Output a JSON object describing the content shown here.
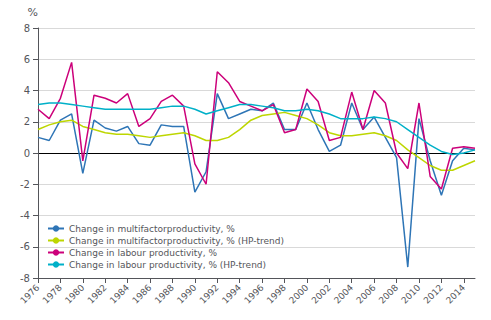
{
  "chart_data": {
    "type": "line",
    "ylabel": "%",
    "x": [
      1976,
      1977,
      1978,
      1979,
      1980,
      1981,
      1982,
      1983,
      1984,
      1985,
      1986,
      1987,
      1988,
      1989,
      1990,
      1991,
      1992,
      1993,
      1994,
      1995,
      1996,
      1997,
      1998,
      1999,
      2000,
      2001,
      2002,
      2003,
      2004,
      2005,
      2006,
      2007,
      2008,
      2009,
      2010,
      2011,
      2012,
      2013,
      2014,
      2015
    ],
    "series": [
      {
        "name": "Change in multifactorproductivity, %",
        "color": "#2e75b6",
        "values": [
          1.0,
          0.8,
          2.1,
          2.5,
          -1.3,
          2.1,
          1.6,
          1.4,
          1.7,
          0.6,
          0.5,
          1.8,
          1.7,
          1.7,
          -2.5,
          -1.2,
          3.8,
          2.2,
          2.5,
          2.8,
          2.7,
          3.2,
          1.5,
          1.5,
          3.2,
          1.5,
          0.1,
          0.5,
          3.2,
          1.5,
          2.3,
          1.0,
          -0.3,
          -7.3,
          2.2,
          -0.5,
          -2.7,
          -0.5,
          0.3,
          0.2
        ]
      },
      {
        "name": "Change in multifactorproductivity, % (HP-trend)",
        "color": "#bdd600",
        "values": [
          1.5,
          1.8,
          2.0,
          2.1,
          1.7,
          1.5,
          1.3,
          1.2,
          1.2,
          1.1,
          1.0,
          1.1,
          1.2,
          1.3,
          1.1,
          0.8,
          0.8,
          1.0,
          1.5,
          2.1,
          2.4,
          2.5,
          2.6,
          2.4,
          2.2,
          1.8,
          1.3,
          1.1,
          1.1,
          1.2,
          1.3,
          1.1,
          0.8,
          0.2,
          -0.3,
          -0.8,
          -1.1,
          -1.1,
          -0.8,
          -0.5
        ]
      },
      {
        "name": "Change in labour productivity, %",
        "color": "#cc007a",
        "values": [
          2.8,
          2.2,
          3.5,
          5.8,
          -0.5,
          3.7,
          3.5,
          3.2,
          3.8,
          1.7,
          2.2,
          3.3,
          3.7,
          3.0,
          -0.7,
          -2.0,
          5.2,
          4.5,
          3.3,
          3.0,
          2.7,
          3.1,
          1.3,
          1.5,
          4.1,
          3.3,
          0.8,
          1.0,
          3.9,
          1.5,
          4.0,
          3.2,
          0.0,
          -1.0,
          3.2,
          -1.5,
          -2.3,
          0.3,
          0.4,
          0.3
        ]
      },
      {
        "name": "Change in labour productivity, % (HP-trend)",
        "color": "#00b0c8",
        "values": [
          3.1,
          3.2,
          3.2,
          3.1,
          3.0,
          2.9,
          2.8,
          2.8,
          2.8,
          2.8,
          2.8,
          2.9,
          3.0,
          3.0,
          2.8,
          2.5,
          2.7,
          2.9,
          3.1,
          3.1,
          3.0,
          2.9,
          2.7,
          2.7,
          2.8,
          2.7,
          2.5,
          2.2,
          2.2,
          2.2,
          2.3,
          2.2,
          2.0,
          1.5,
          1.0,
          0.5,
          0.1,
          -0.1,
          0.0,
          0.2
        ]
      }
    ],
    "xlim": [
      1976,
      2015
    ],
    "xticks": [
      1976,
      1978,
      1980,
      1982,
      1984,
      1986,
      1988,
      1990,
      1992,
      1994,
      1996,
      1998,
      2000,
      2002,
      2004,
      2006,
      2008,
      2010,
      2012,
      2014
    ],
    "ylim": [
      -8,
      8
    ],
    "yticks": [
      -8,
      -6,
      -4,
      -2,
      0,
      2,
      4,
      6,
      8
    ],
    "grid": true,
    "legend": "lower left"
  }
}
